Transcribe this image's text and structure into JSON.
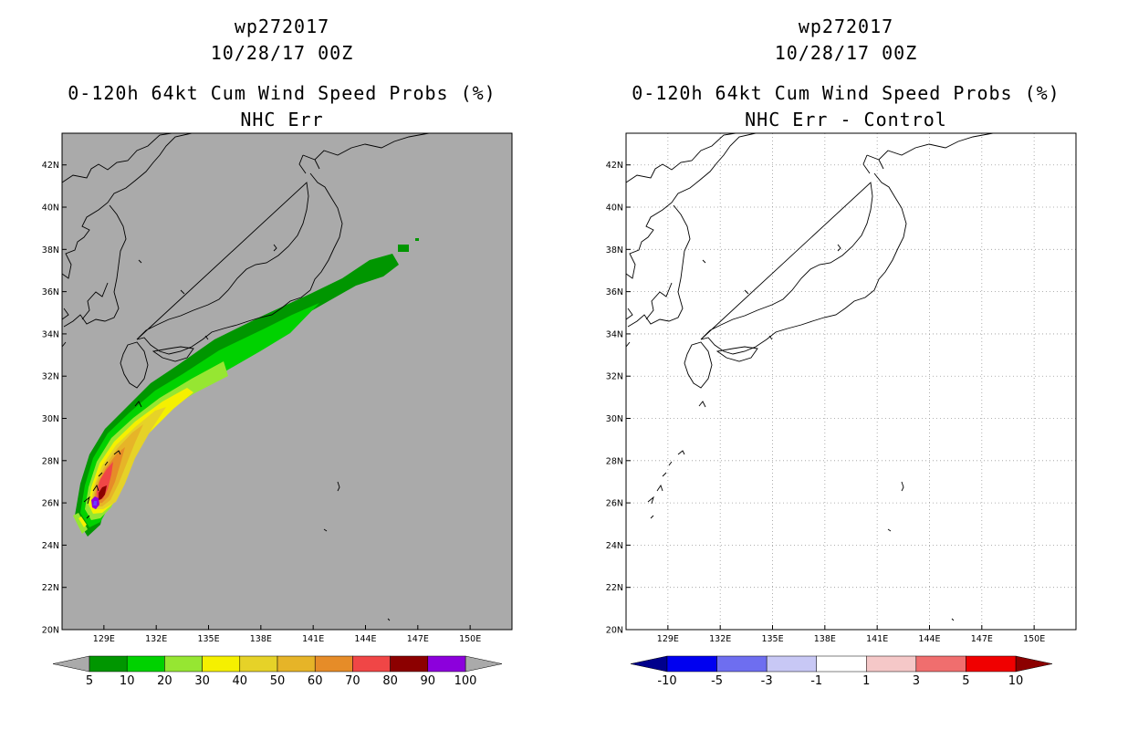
{
  "panels": [
    {
      "id": "left",
      "storm_id": "wp272017",
      "datetime": "10/28/17 00Z",
      "product": "0-120h 64kt Cum Wind Speed Probs (%)",
      "subtitle": "NHC Err",
      "background_color": "#aaaaaa",
      "colorbar": {
        "labels": [
          "5",
          "10",
          "20",
          "30",
          "40",
          "50",
          "60",
          "70",
          "80",
          "90",
          "100"
        ],
        "colors": [
          "#009600",
          "#00d200",
          "#96e632",
          "#f5f000",
          "#e6d228",
          "#e6b428",
          "#e68c28",
          "#f04646",
          "#8c0000",
          "#8c00dc"
        ],
        "under_color": "#aaaaaa",
        "over_color": "#aaaaaa"
      }
    },
    {
      "id": "right",
      "storm_id": "wp272017",
      "datetime": "10/28/17 00Z",
      "product": "0-120h 64kt Cum Wind Speed Probs (%)",
      "subtitle": "NHC Err - Control",
      "background_color": "#ffffff",
      "colorbar": {
        "labels": [
          "-10",
          "-5",
          "-3",
          "-1",
          "1",
          "3",
          "5",
          "10"
        ],
        "colors": [
          "#0000f0",
          "#6e6ef0",
          "#c8c8f5",
          "#ffffff",
          "#f5c8c8",
          "#f06e6e",
          "#f00000"
        ],
        "under_color": "#00008c",
        "over_color": "#8c0000"
      }
    }
  ],
  "axes": {
    "lat_labels": [
      "42N",
      "40N",
      "38N",
      "36N",
      "34N",
      "32N",
      "30N",
      "28N",
      "26N",
      "24N",
      "22N",
      "20N"
    ],
    "lat_values": [
      42,
      40,
      38,
      36,
      34,
      32,
      30,
      28,
      26,
      24,
      22,
      20
    ],
    "lon_labels": [
      "129E",
      "132E",
      "135E",
      "138E",
      "141E",
      "144E",
      "147E",
      "150E"
    ],
    "lon_values": [
      129,
      132,
      135,
      138,
      141,
      144,
      147,
      150
    ],
    "lon_range": [
      126.6,
      152.4
    ],
    "lat_range": [
      20,
      43.5
    ]
  },
  "probability_swath": {
    "description_levels": [
      "5",
      "10",
      "20",
      "30",
      "40",
      "50",
      "60",
      "70",
      "80",
      "90",
      "100"
    ]
  }
}
